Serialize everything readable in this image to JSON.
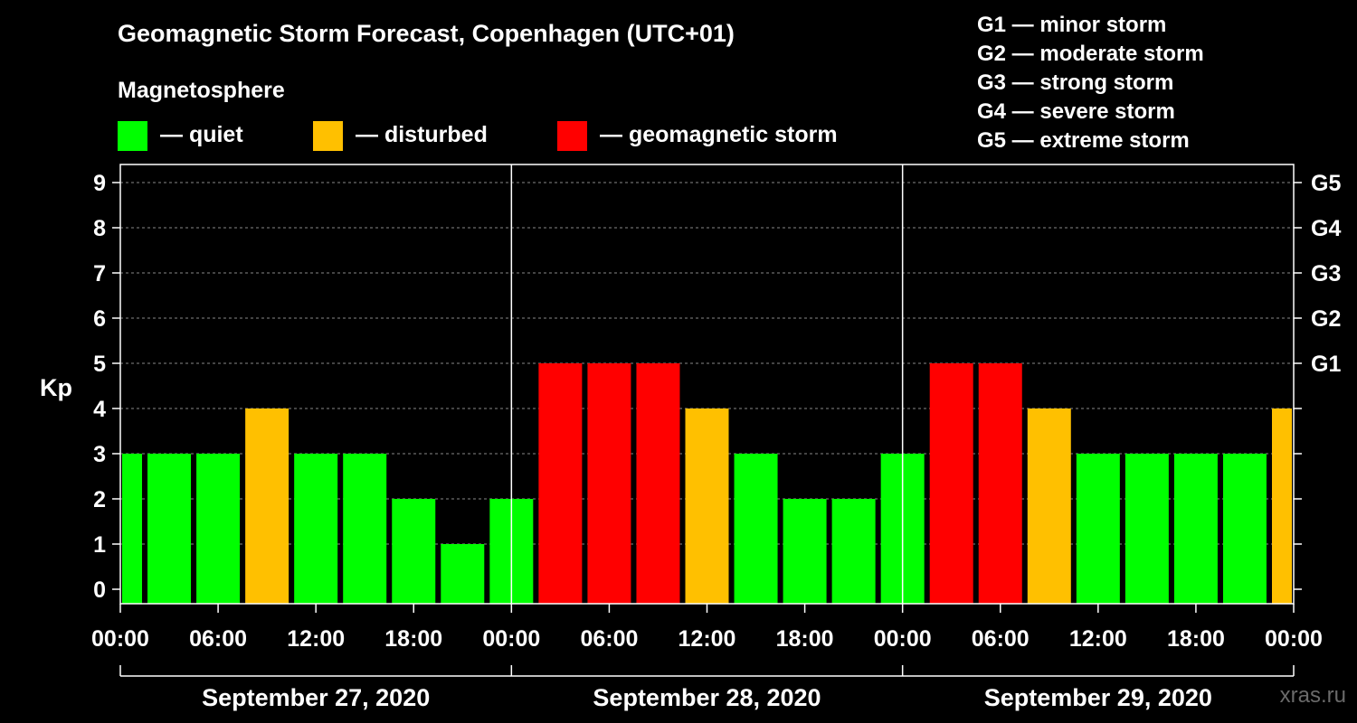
{
  "title": "Geomagnetic Storm Forecast, Copenhagen (UTC+01)",
  "legend": {
    "heading": "Magnetosphere",
    "items": [
      {
        "label": "— quiet",
        "color": "#00ff00"
      },
      {
        "label": "— disturbed",
        "color": "#ffc000"
      },
      {
        "label": "— geomagnetic storm",
        "color": "#ff0000"
      }
    ]
  },
  "g_scale_legend": [
    "G1 — minor storm",
    "G2 — moderate storm",
    "G3 — strong storm",
    "G4 — severe storm",
    "G5 — extreme storm"
  ],
  "watermark": "xras.ru",
  "chart_data": {
    "type": "bar",
    "title": "Geomagnetic Storm Forecast, Copenhagen (UTC+01)",
    "ylabel": "Kp",
    "ylim": [
      0,
      9
    ],
    "yticks": [
      "0",
      "1",
      "2",
      "3",
      "4",
      "5",
      "6",
      "7",
      "8",
      "9"
    ],
    "right_axis_labels": [
      {
        "kp": 5,
        "label": "G1"
      },
      {
        "kp": 6,
        "label": "G2"
      },
      {
        "kp": 7,
        "label": "G3"
      },
      {
        "kp": 8,
        "label": "G4"
      },
      {
        "kp": 9,
        "label": "G5"
      }
    ],
    "xtick_labels": [
      "00:00",
      "06:00",
      "12:00",
      "18:00",
      "00:00",
      "06:00",
      "12:00",
      "18:00",
      "00:00",
      "06:00",
      "12:00",
      "18:00",
      "00:00"
    ],
    "days": [
      "September 27, 2020",
      "September 28, 2020",
      "September 29, 2020"
    ],
    "interval_hours": 3,
    "values": [
      3,
      3,
      3,
      4,
      3,
      3,
      2,
      1,
      2,
      5,
      5,
      5,
      4,
      3,
      2,
      2,
      3,
      5,
      5,
      4,
      3,
      3,
      3,
      3,
      4
    ],
    "colors": {
      "quiet": "#00ff00",
      "disturbed": "#ffc000",
      "storm": "#ff0000"
    },
    "grid": "dashed horizontal lines at each Kp level"
  }
}
